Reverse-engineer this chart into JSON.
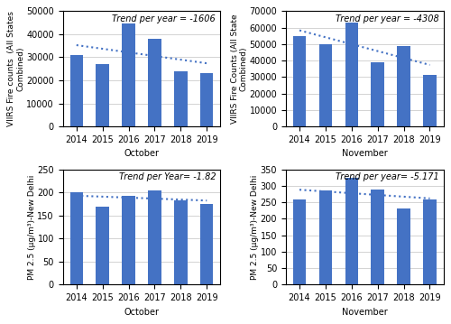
{
  "years": [
    2014,
    2015,
    2016,
    2017,
    2018,
    2019
  ],
  "oct_fire": [
    31000,
    27200,
    44500,
    38000,
    24000,
    23200
  ],
  "nov_fire": [
    55000,
    50000,
    63000,
    39000,
    49000,
    31000
  ],
  "oct_pm25": [
    200,
    170,
    193,
    205,
    183,
    175
  ],
  "nov_pm25": [
    258,
    285,
    325,
    290,
    232,
    260
  ],
  "bar_color": "#4472C4",
  "trend_color": "#4472C4",
  "oct_fire_ylim": [
    0,
    50000
  ],
  "nov_fire_ylim": [
    0,
    70000
  ],
  "oct_pm25_ylim": [
    0,
    250
  ],
  "nov_pm25_ylim": [
    0,
    350
  ],
  "oct_fire_yticks": [
    0,
    10000,
    20000,
    30000,
    40000,
    50000
  ],
  "nov_fire_yticks": [
    0,
    10000,
    20000,
    30000,
    40000,
    50000,
    60000,
    70000
  ],
  "oct_pm25_yticks": [
    0,
    50,
    100,
    150,
    200,
    250
  ],
  "nov_pm25_yticks": [
    0,
    50,
    100,
    150,
    200,
    250,
    300,
    350
  ],
  "xlabel_oct": "October",
  "xlabel_nov": "November",
  "ylabel_fire_oct": "VIIRS Fire counts  (All States\nCombined)",
  "ylabel_fire_nov": "VIIRS Fire Counts (All State\nCombined)",
  "ylabel_pm25_oct": "PM 2.5 (μg/m³)-New Delhi",
  "ylabel_pm25_nov": "PM 2.5 (μg/m³)-New Delhi",
  "trend_label_oct_fire": "Trend per year = -1606",
  "trend_label_nov_fire": "Trend per year = -4308",
  "trend_label_oct_pm25": "Trend per Year= -1.82",
  "trend_label_nov_pm25": "Trend per year= -5.171",
  "background_color": "#ffffff",
  "bar_width": 0.5,
  "tick_fontsize": 7,
  "label_fontsize": 7,
  "ylabel_fontsize": 6.5,
  "trend_fontsize": 7
}
